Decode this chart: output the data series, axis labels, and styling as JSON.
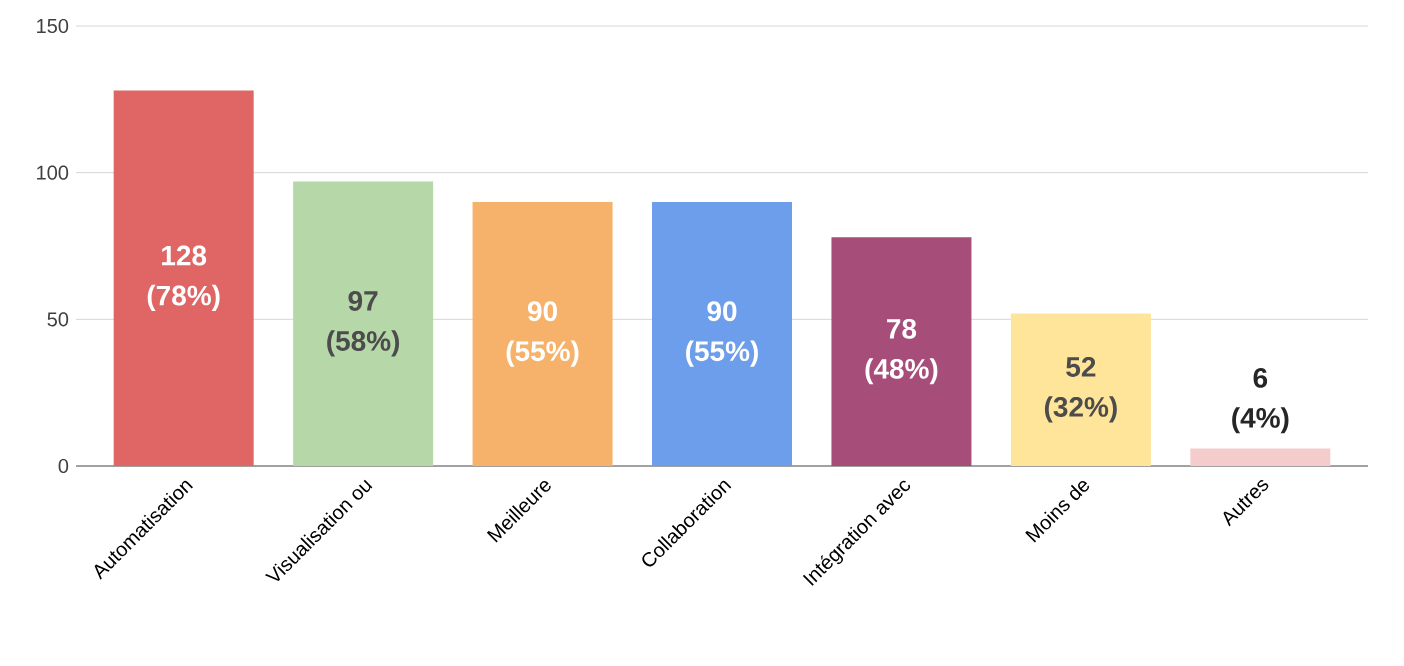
{
  "chart_data": {
    "type": "bar",
    "categories": [
      "Automatisation",
      "Visualisation ou",
      "Meilleure",
      "Collaboration",
      "Intégration avec",
      "Moins de",
      "Autres"
    ],
    "values": [
      128,
      97,
      90,
      90,
      78,
      52,
      6
    ],
    "colors": [
      "#e06666",
      "#b6d7a8",
      "#f6b26b",
      "#6d9eeb",
      "#a64d79",
      "#ffe599",
      "#f4cccc"
    ],
    "value_labels": [
      "128 (78%)",
      "97 (58%)",
      "90 (55%)",
      "90 (55%)",
      "78 (48%)",
      "52 (32%)",
      "6 (4%)"
    ],
    "ylim": [
      0,
      150
    ],
    "yticks": [
      0,
      50,
      100,
      150
    ],
    "grid": "y"
  }
}
